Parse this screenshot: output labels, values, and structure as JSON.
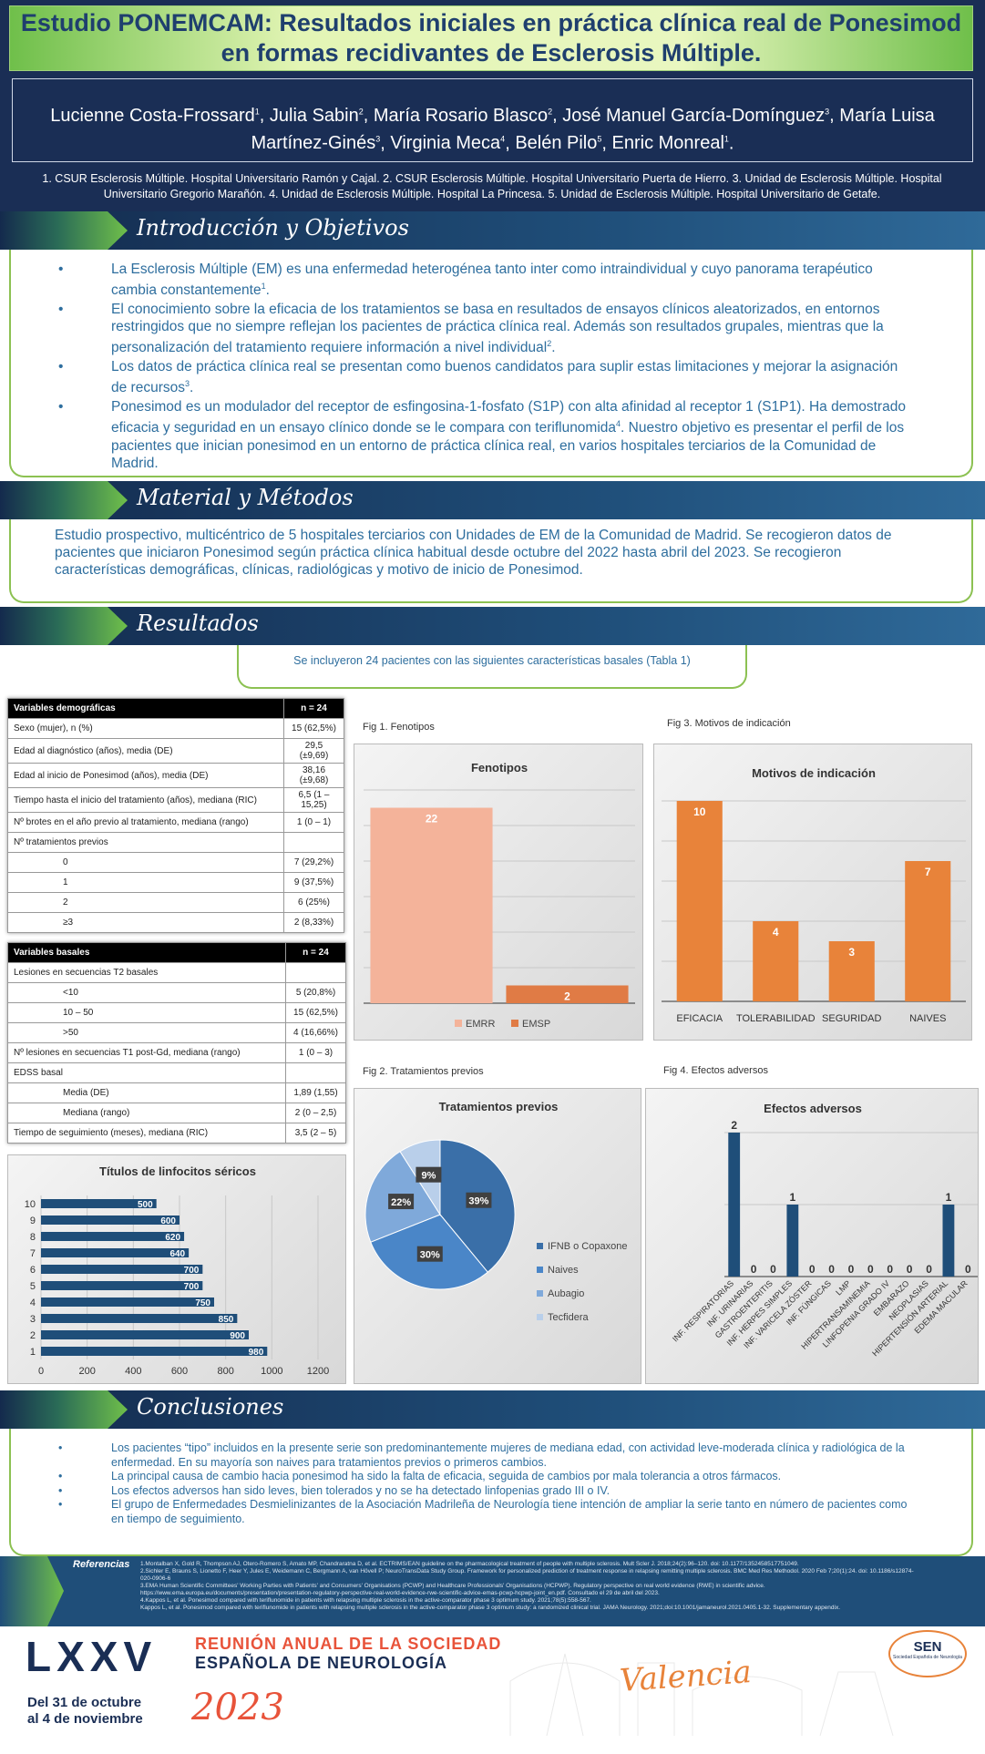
{
  "header": {
    "title": "Estudio PONEMCAM: Resultados iniciales en práctica clínica real de Ponesimod en formas recidivantes de Esclerosis Múltiple.",
    "authors": [
      {
        "n": "Lucienne Costa-Frossard",
        "s": "1"
      },
      {
        "n": "Julia Sabin",
        "s": "2"
      },
      {
        "n": "María Rosario Blasco",
        "s": "2"
      },
      {
        "n": "José Manuel García-Domínguez",
        "s": "3"
      },
      {
        "n": "María Luisa Martínez-Ginés",
        "s": "3"
      },
      {
        "n": "Virginia Meca",
        "s": "4"
      },
      {
        "n": "Belén Pilo",
        "s": "5"
      },
      {
        "n": "Enric Monreal",
        "s": "1"
      }
    ],
    "affiliations": "1. CSUR Esclerosis Múltiple. Hospital Universitario Ramón y Cajal. 2. CSUR Esclerosis Múltiple. Hospital Universitario Puerta de Hierro. 3. Unidad de Esclerosis Múltiple. Hospital Universitario Gregorio Marañón. 4. Unidad de Esclerosis Múltiple. Hospital La Princesa. 5. Unidad de Esclerosis Múltiple. Hospital Universitario de Getafe."
  },
  "intro": {
    "title": "Introducción y Objetivos",
    "bullets": [
      {
        "t": "La Esclerosis Múltiple (EM) es una enfermedad heterogénea tanto inter como intraindividual y cuyo panorama terapéutico cambia constantemente",
        "s": "1",
        "e": "."
      },
      {
        "t": "El conocimiento sobre la eficacia de los tratamientos se basa en resultados de ensayos clínicos aleatorizados, en entornos restringidos que no siempre reflejan los pacientes de práctica clínica real. Además son resultados grupales, mientras que la personalización del tratamiento requiere información a nivel individual",
        "s": "2",
        "e": "."
      },
      {
        "t": "Los datos de práctica clínica real se presentan como buenos candidatos para suplir estas limitaciones y mejorar la asignación de recursos",
        "s": "3",
        "e": "."
      },
      {
        "t": "Ponesimod es un modulador del receptor de esfingosina-1-fosfato (S1P) con alta afinidad al receptor 1 (S1P1). Ha demostrado eficacia y seguridad en un ensayo clínico donde se le compara con teriflunomida",
        "s": "4",
        "e": ". Nuestro objetivo es presentar el perfil de los pacientes que inician ponesimod en un entorno de práctica clínica real, en varios hospitales terciarios de la Comunidad de Madrid."
      }
    ]
  },
  "methods": {
    "title": "Material y Métodos",
    "text": "Estudio prospectivo, multicéntrico de 5 hospitales terciarios con Unidades de EM de la Comunidad de Madrid. Se recogieron datos de pacientes que iniciaron Ponesimod según práctica clínica habitual desde octubre del 2022 hasta abril del 2023. Se recogieron características demográficas, clínicas, radiológicas y motivo de inicio de Ponesimod."
  },
  "results": {
    "title": "Resultados",
    "intro": "Se incluyeron 24 pacientes con las siguientes características basales (Tabla 1)"
  },
  "table1": {
    "h": [
      "Variables demográficas",
      "n = 24"
    ],
    "rows": [
      [
        "Sexo (mujer), n (%)",
        "15 (62,5%)",
        0
      ],
      [
        "Edad al diagnóstico (años), media (DE)",
        "29,5 (±9,69)",
        0
      ],
      [
        "Edad al inicio de Ponesimod (años), media (DE)",
        "38,16 (±9,68)",
        0
      ],
      [
        "Tiempo hasta el inicio del tratamiento (años), mediana (RIC)",
        "6,5 (1 – 15,25)",
        0
      ],
      [
        "Nº brotes en el año previo al tratamiento, mediana (rango)",
        "1 (0 – 1)",
        0
      ],
      [
        "Nº tratamientos previos",
        "",
        0
      ],
      [
        "0",
        "7 (29,2%)",
        1
      ],
      [
        "1",
        "9 (37,5%)",
        1
      ],
      [
        "2",
        "6 (25%)",
        1
      ],
      [
        "≥3",
        "2 (8,33%)",
        1
      ]
    ]
  },
  "table2": {
    "h": [
      "Variables basales",
      "n = 24"
    ],
    "rows": [
      [
        "Lesiones en secuencias T2 basales",
        "",
        0
      ],
      [
        "<10",
        "5 (20,8%)",
        1
      ],
      [
        "10 – 50",
        "15 (62,5%)",
        1
      ],
      [
        ">50",
        "4 (16,66%)",
        1
      ],
      [
        "Nº lesiones en secuencias T1 post-Gd, mediana (rango)",
        "1 (0 – 3)",
        0
      ],
      [
        "EDSS basal",
        "",
        0
      ],
      [
        "Media (DE)",
        "1,89 (1,55)",
        1
      ],
      [
        "Mediana (rango)",
        "2 (0 – 2,5)",
        1
      ],
      [
        "Tiempo de seguimiento (meses), mediana (RIC)",
        "3,5 (2 – 5)",
        0
      ]
    ]
  },
  "chart_data": [
    {
      "id": "fig1",
      "caption": "Fig 1. Fenotipos",
      "type": "bar",
      "title": "Fenotipos",
      "categories": [
        "EMRR",
        "EMSP"
      ],
      "values": [
        22,
        2
      ],
      "colors": [
        "#f4b39a",
        "#e07b45"
      ],
      "ylim": [
        0,
        24
      ],
      "legend": [
        "EMRR",
        "EMSP"
      ]
    },
    {
      "id": "fig3",
      "caption": "Fig 3. Motivos de indicación",
      "type": "bar",
      "title": "Motivos de indicación",
      "categories": [
        "EFICACIA",
        "TOLERABILIDAD",
        "SEGURIDAD",
        "NAIVES"
      ],
      "values": [
        10,
        4,
        3,
        7
      ],
      "ylim": [
        0,
        10
      ]
    },
    {
      "id": "fig2",
      "caption": "Fig 2. Tratamientos previos",
      "type": "pie",
      "title": "Tratamientos previos",
      "categories": [
        "IFNB o Copaxone",
        "Naives",
        "Aubagio",
        "Tecfidera"
      ],
      "values": [
        39,
        30,
        22,
        9
      ],
      "labels": [
        "39%",
        "30%",
        "22%",
        "9%"
      ],
      "colors": [
        "#3a6fa8",
        "#4a86c8",
        "#7fa9da",
        "#b9cfea"
      ]
    },
    {
      "id": "fig4",
      "caption": "Fig 4. Efectos adversos",
      "type": "bar",
      "title": "Efectos adversos",
      "categories": [
        "INF. RESPIRATORIAS",
        "INF. URINARIAS",
        "GASTROENTERITIS",
        "INF. HERPES SIMPLES",
        "INF. VARICELA ZÓSTER",
        "INF. FÚNGICAS",
        "LMP",
        "HIPERTRANSAMINEMIA",
        "LINFOPENIA GRADO IV",
        "EMBARAZO",
        "NEOPLASIAS",
        "HIPERTENSIÓN ARTERIAL",
        "EDEMA MACULAR"
      ],
      "values": [
        2,
        0,
        0,
        1,
        0,
        0,
        0,
        0,
        0,
        0,
        0,
        1,
        0
      ],
      "ylim": [
        0,
        2
      ]
    },
    {
      "id": "linfo",
      "caption": "",
      "type": "bar",
      "orientation": "horizontal",
      "title": "Títulos de linfocitos séricos",
      "categories": [
        "1",
        "2",
        "3",
        "4",
        "5",
        "6",
        "7",
        "8",
        "9",
        "10"
      ],
      "values": [
        980,
        900,
        850,
        750,
        700,
        700,
        640,
        620,
        600,
        500
      ],
      "xlim": [
        0,
        1200
      ],
      "xticks": [
        "0",
        "200",
        "400",
        "600",
        "800",
        "1000",
        "1200"
      ]
    }
  ],
  "conclusions": {
    "title": "Conclusiones",
    "bullets": [
      "Los pacientes “tipo” incluidos en la presente serie son predominantemente mujeres de mediana edad, con actividad leve-moderada clínica y radiológica de la enfermedad. En su mayoría son naives para tratamientos previos o primeros cambios.",
      "La principal causa de cambio hacia ponesimod ha sido la falta de eficacia, seguida de cambios por mala tolerancia a otros fármacos.",
      "Los efectos adversos han sido leves, bien tolerados y no se ha detectado linfopenias grado III o IV.",
      "El grupo de Enfermedades Desmielinizantes de la Asociación Madrileña de Neurología tiene intención de ampliar la serie tanto en número de pacientes como en tiempo de seguimiento."
    ]
  },
  "references": {
    "title": "Referencias",
    "items": [
      "1.Montalban X, Gold R, Thompson AJ, Otero-Romero S, Amato MP, Chandraratna D, et al. ECTRIMS/EAN guideline on the pharmacological treatment of people with multiple sclerosis. Mult Scler J. 2018;24(2):96–120. doi: 10.1177/1352458517751049.",
      "2.Sichler E, Brauns S, Lionetto F, Heer Y, Jules E, Weidemann C, Bergmann A, van Hövell P; NeuroTransData Study Group. Framework for personalized prediction of treatment response in relapsing remitting multiple sclerosis. BMC Med Res Methodol. 2020 Feb 7;20(1):24. doi: 10.1186/s12874-020-0906-6",
      "3.EMA Human Scientific Committees' Working Parties with Patients' and Consumers' Organisations (PCWP) and Healthcare Professionals' Organisations (HCPWP). Regulatory perspective on real world evidence (RWE) in scientific advice. https://www.ema.europa.eu/documents/presentation/presentation-regulatory-perspective-real-world-evidence-rwe-scientific-advice-emas-pcwp-hcpwp-joint_en.pdf. Consultado el 29 de abril del 2023.",
      "4.Kappos L, et al. Ponesimod compared with teriflunomide in patients with relapsing multiple sclerosis in the active-comparator phase 3 optimum study. 2021;78(5):558-567.",
      "Kappos L, et al. Ponesimod compared with teriflunomide in patients with relapsing multiple sclerosis in the active-comparator phase 3 optimum study: a randomized clinical trial. JAMA Neurology. 2021;doi:10.1001/jamaneurol.2021.0405.1-32. Supplementary appendix."
    ]
  },
  "footer": {
    "roman": "LXXV",
    "line1": "REUNIÓN ANUAL DE LA SOCIEDAD",
    "line2": "ESPAÑOLA DE NEUROLOGÍA",
    "city": "Valencia",
    "dates1": "Del 31 de octubre",
    "dates2": "al 4 de noviembre",
    "year": "2023",
    "sen": "SEN",
    "sen_sub": "Sociedad Española de Neurología"
  },
  "colors": {
    "navy": "#1a2e55",
    "orange": "#e8833a",
    "blue": "#1f4e79",
    "green": "#8cc152"
  }
}
